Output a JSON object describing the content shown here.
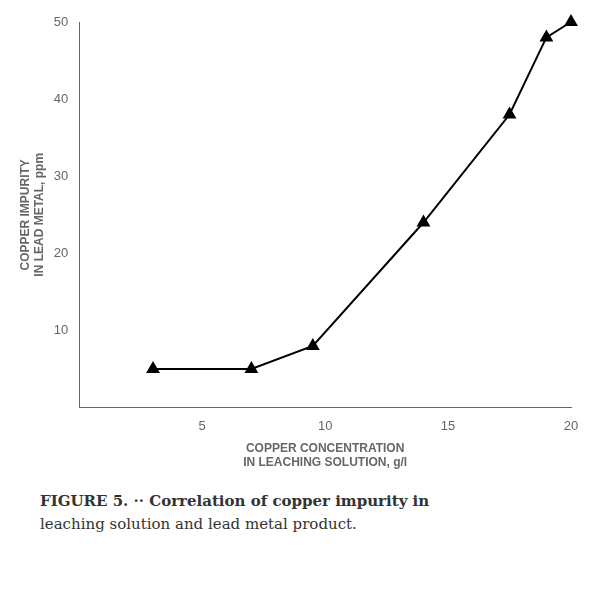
{
  "chart_data": {
    "type": "line",
    "x": [
      3,
      7,
      9.5,
      14,
      17.5,
      19,
      20
    ],
    "values": [
      5,
      5,
      8,
      24,
      38,
      48,
      50
    ],
    "color": "black",
    "marker": "triangle",
    "xlabel": [
      "COPPER CONCENTRATION",
      "IN LEACHING SOLUTION, g/l"
    ],
    "ylabel": [
      "COPPER IMPURITY",
      "IN LEAD METAL, ppm"
    ],
    "annotations": [
      "FIGURE 5. ·· Correlation of copper impurity in",
      "leaching solution and lead metal product."
    ],
    "xlim": [
      0,
      20
    ],
    "ylim": [
      0,
      50
    ],
    "xticks": [
      5,
      10,
      15,
      20
    ],
    "yticks": [
      10,
      20,
      30,
      40,
      50
    ],
    "grid": false
  }
}
